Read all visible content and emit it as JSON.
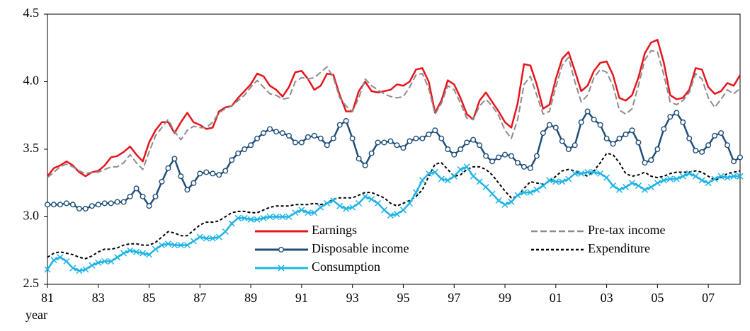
{
  "chart_data": {
    "type": "line",
    "x_label": "year",
    "x": [
      1981,
      1981.25,
      1981.5,
      1981.75,
      1982,
      1982.25,
      1982.5,
      1982.75,
      1983,
      1983.25,
      1983.5,
      1983.75,
      1984,
      1984.25,
      1984.5,
      1984.75,
      1985,
      1985.25,
      1985.5,
      1985.75,
      1986,
      1986.25,
      1986.5,
      1986.75,
      1987,
      1987.25,
      1987.5,
      1987.75,
      1988,
      1988.25,
      1988.5,
      1988.75,
      1989,
      1989.25,
      1989.5,
      1989.75,
      1990,
      1990.25,
      1990.5,
      1990.75,
      1991,
      1991.25,
      1991.5,
      1991.75,
      1992,
      1992.25,
      1992.5,
      1992.75,
      1993,
      1993.25,
      1993.5,
      1993.75,
      1994,
      1994.25,
      1994.5,
      1994.75,
      1995,
      1995.25,
      1995.5,
      1995.75,
      1996,
      1996.25,
      1996.5,
      1996.75,
      1997,
      1997.25,
      1997.5,
      1997.75,
      1998,
      1998.25,
      1998.5,
      1998.75,
      1999,
      1999.25,
      1999.5,
      1999.75,
      2000,
      2000.25,
      2000.5,
      2000.75,
      2001,
      2001.25,
      2001.5,
      2001.75,
      2002,
      2002.25,
      2002.5,
      2002.75,
      2003,
      2003.25,
      2003.5,
      2003.75,
      2004,
      2004.25,
      2004.5,
      2004.75,
      2005,
      2005.25,
      2005.5,
      2005.75,
      2006,
      2006.25,
      2006.5,
      2006.75,
      2007,
      2007.25,
      2007.5,
      2007.75,
      2008,
      2008.25
    ],
    "xlim": [
      1981,
      2008.25
    ],
    "xticks": [
      {
        "value": 1981,
        "label": "81"
      },
      {
        "value": 1983,
        "label": "83"
      },
      {
        "value": 1985,
        "label": "85"
      },
      {
        "value": 1987,
        "label": "87"
      },
      {
        "value": 1989,
        "label": "89"
      },
      {
        "value": 1991,
        "label": "91"
      },
      {
        "value": 1993,
        "label": "93"
      },
      {
        "value": 1995,
        "label": "95"
      },
      {
        "value": 1997,
        "label": "97"
      },
      {
        "value": 1999,
        "label": "99"
      },
      {
        "value": 2001,
        "label": "01"
      },
      {
        "value": 2003,
        "label": "03"
      },
      {
        "value": 2005,
        "label": "05"
      },
      {
        "value": 2007,
        "label": "07"
      }
    ],
    "ylim": [
      2.5,
      4.5
    ],
    "yticks": [
      2.5,
      {
        "value": 3,
        "label": "3.0"
      },
      3.5,
      {
        "value": 4,
        "label": "4.0"
      },
      4.5
    ],
    "grid": false,
    "legend": "lower center",
    "series": [
      {
        "name": "Earnings",
        "color": "#e8141c",
        "style": "solid",
        "marker": "none",
        "values": [
          3.3,
          3.36,
          3.38,
          3.41,
          3.38,
          3.33,
          3.3,
          3.33,
          3.34,
          3.38,
          3.44,
          3.45,
          3.48,
          3.52,
          3.46,
          3.41,
          3.55,
          3.64,
          3.7,
          3.7,
          3.62,
          3.7,
          3.77,
          3.7,
          3.68,
          3.65,
          3.66,
          3.78,
          3.81,
          3.82,
          3.88,
          3.93,
          3.98,
          4.06,
          4.04,
          3.97,
          3.94,
          3.89,
          3.96,
          4.07,
          4.08,
          4.02,
          3.94,
          3.97,
          4.06,
          4.05,
          3.9,
          3.78,
          3.78,
          3.93,
          4.0,
          3.93,
          3.92,
          3.93,
          3.94,
          3.98,
          3.97,
          4.0,
          4.09,
          4.1,
          4.0,
          3.77,
          3.86,
          4.01,
          3.98,
          3.88,
          3.76,
          3.72,
          3.86,
          3.92,
          3.85,
          3.78,
          3.7,
          3.66,
          3.84,
          4.13,
          4.12,
          3.98,
          3.8,
          3.83,
          4.02,
          4.17,
          4.22,
          4.08,
          3.93,
          3.97,
          4.08,
          4.14,
          4.15,
          4.05,
          3.88,
          3.86,
          3.9,
          4.03,
          4.21,
          4.29,
          4.31,
          4.14,
          3.9,
          3.87,
          3.88,
          3.94,
          4.1,
          4.09,
          3.96,
          3.91,
          3.93,
          3.99,
          3.97,
          4.05
        ]
      },
      {
        "name": "Pre-tax income",
        "color": "#8c8c8c",
        "style": "dashed",
        "marker": "none",
        "values": [
          3.29,
          3.33,
          3.37,
          3.39,
          3.37,
          3.34,
          3.32,
          3.33,
          3.33,
          3.35,
          3.37,
          3.37,
          3.4,
          3.46,
          3.4,
          3.35,
          3.48,
          3.6,
          3.66,
          3.72,
          3.63,
          3.57,
          3.64,
          3.67,
          3.66,
          3.66,
          3.7,
          3.77,
          3.8,
          3.82,
          3.86,
          3.9,
          3.96,
          4.01,
          3.96,
          3.91,
          3.9,
          3.87,
          3.88,
          4.0,
          4.03,
          4.02,
          4.03,
          4.07,
          4.11,
          4.03,
          3.88,
          3.82,
          3.78,
          3.88,
          4.02,
          3.97,
          3.94,
          3.91,
          3.89,
          3.88,
          3.89,
          3.96,
          4.05,
          4.06,
          3.95,
          3.76,
          3.84,
          3.97,
          3.94,
          3.84,
          3.73,
          3.72,
          3.82,
          3.87,
          3.82,
          3.75,
          3.64,
          3.58,
          3.72,
          3.98,
          4.04,
          3.9,
          3.76,
          3.78,
          3.96,
          4.12,
          4.18,
          4.0,
          3.85,
          3.9,
          4.03,
          4.09,
          4.07,
          3.97,
          3.79,
          3.76,
          3.8,
          3.97,
          4.16,
          4.23,
          4.22,
          4.05,
          3.85,
          3.83,
          3.86,
          3.92,
          4.06,
          4.02,
          3.88,
          3.81,
          3.87,
          3.94,
          3.91,
          3.95
        ]
      },
      {
        "name": "Disposable income",
        "color": "#1f4e79",
        "style": "solid",
        "marker": "circle",
        "values": [
          3.09,
          3.09,
          3.09,
          3.1,
          3.09,
          3.06,
          3.06,
          3.08,
          3.09,
          3.1,
          3.1,
          3.11,
          3.11,
          3.15,
          3.21,
          3.15,
          3.08,
          3.15,
          3.26,
          3.36,
          3.43,
          3.3,
          3.2,
          3.25,
          3.32,
          3.33,
          3.32,
          3.31,
          3.34,
          3.42,
          3.47,
          3.5,
          3.53,
          3.58,
          3.62,
          3.65,
          3.63,
          3.62,
          3.6,
          3.55,
          3.55,
          3.59,
          3.6,
          3.58,
          3.53,
          3.58,
          3.68,
          3.71,
          3.58,
          3.43,
          3.38,
          3.47,
          3.55,
          3.55,
          3.56,
          3.53,
          3.51,
          3.56,
          3.58,
          3.58,
          3.61,
          3.64,
          3.58,
          3.5,
          3.46,
          3.5,
          3.55,
          3.57,
          3.53,
          3.45,
          3.41,
          3.44,
          3.46,
          3.45,
          3.4,
          3.37,
          3.36,
          3.45,
          3.62,
          3.68,
          3.66,
          3.56,
          3.5,
          3.53,
          3.7,
          3.78,
          3.72,
          3.68,
          3.58,
          3.54,
          3.58,
          3.61,
          3.64,
          3.55,
          3.4,
          3.42,
          3.5,
          3.65,
          3.74,
          3.77,
          3.7,
          3.58,
          3.49,
          3.48,
          3.53,
          3.6,
          3.62,
          3.53,
          3.41,
          3.44
        ]
      },
      {
        "name": "Expenditure",
        "color": "#000000",
        "style": "dotted",
        "marker": "none",
        "values": [
          2.7,
          2.73,
          2.74,
          2.73,
          2.72,
          2.7,
          2.69,
          2.71,
          2.74,
          2.76,
          2.76,
          2.77,
          2.79,
          2.8,
          2.8,
          2.79,
          2.79,
          2.81,
          2.85,
          2.89,
          2.88,
          2.86,
          2.86,
          2.9,
          2.94,
          2.96,
          2.96,
          2.97,
          3.0,
          3.03,
          3.04,
          3.04,
          3.03,
          3.03,
          3.05,
          3.07,
          3.08,
          3.08,
          3.08,
          3.09,
          3.09,
          3.09,
          3.1,
          3.09,
          3.1,
          3.13,
          3.14,
          3.14,
          3.14,
          3.16,
          3.18,
          3.18,
          3.16,
          3.14,
          3.1,
          3.08,
          3.1,
          3.12,
          3.15,
          3.2,
          3.3,
          3.39,
          3.4,
          3.35,
          3.3,
          3.31,
          3.35,
          3.37,
          3.37,
          3.35,
          3.31,
          3.25,
          3.19,
          3.14,
          3.15,
          3.21,
          3.26,
          3.25,
          3.24,
          3.26,
          3.3,
          3.34,
          3.35,
          3.34,
          3.32,
          3.3,
          3.34,
          3.4,
          3.47,
          3.46,
          3.4,
          3.32,
          3.3,
          3.31,
          3.33,
          3.3,
          3.29,
          3.3,
          3.32,
          3.33,
          3.33,
          3.33,
          3.34,
          3.33,
          3.3,
          3.27,
          3.29,
          3.32,
          3.33,
          3.34
        ]
      },
      {
        "name": "Consumption",
        "color": "#1eb4e6",
        "style": "solid",
        "marker": "x",
        "values": [
          2.61,
          2.68,
          2.7,
          2.67,
          2.62,
          2.6,
          2.61,
          2.64,
          2.66,
          2.67,
          2.67,
          2.7,
          2.73,
          2.75,
          2.74,
          2.73,
          2.72,
          2.76,
          2.79,
          2.8,
          2.79,
          2.79,
          2.79,
          2.82,
          2.85,
          2.84,
          2.84,
          2.85,
          2.89,
          2.95,
          2.99,
          2.99,
          2.98,
          2.98,
          2.99,
          3.0,
          3.0,
          3.0,
          3.0,
          3.03,
          3.05,
          3.03,
          3.03,
          3.07,
          3.1,
          3.12,
          3.08,
          3.06,
          3.07,
          3.1,
          3.15,
          3.13,
          3.1,
          3.05,
          3.01,
          3.02,
          3.05,
          3.1,
          3.18,
          3.27,
          3.32,
          3.33,
          3.28,
          3.27,
          3.3,
          3.35,
          3.37,
          3.3,
          3.26,
          3.22,
          3.17,
          3.12,
          3.09,
          3.11,
          3.16,
          3.18,
          3.18,
          3.2,
          3.23,
          3.27,
          3.26,
          3.26,
          3.28,
          3.32,
          3.32,
          3.33,
          3.33,
          3.32,
          3.29,
          3.23,
          3.2,
          3.22,
          3.25,
          3.23,
          3.2,
          3.22,
          3.25,
          3.27,
          3.28,
          3.28,
          3.3,
          3.32,
          3.3,
          3.27,
          3.25,
          3.28,
          3.3,
          3.29,
          3.3,
          3.3
        ]
      }
    ]
  }
}
